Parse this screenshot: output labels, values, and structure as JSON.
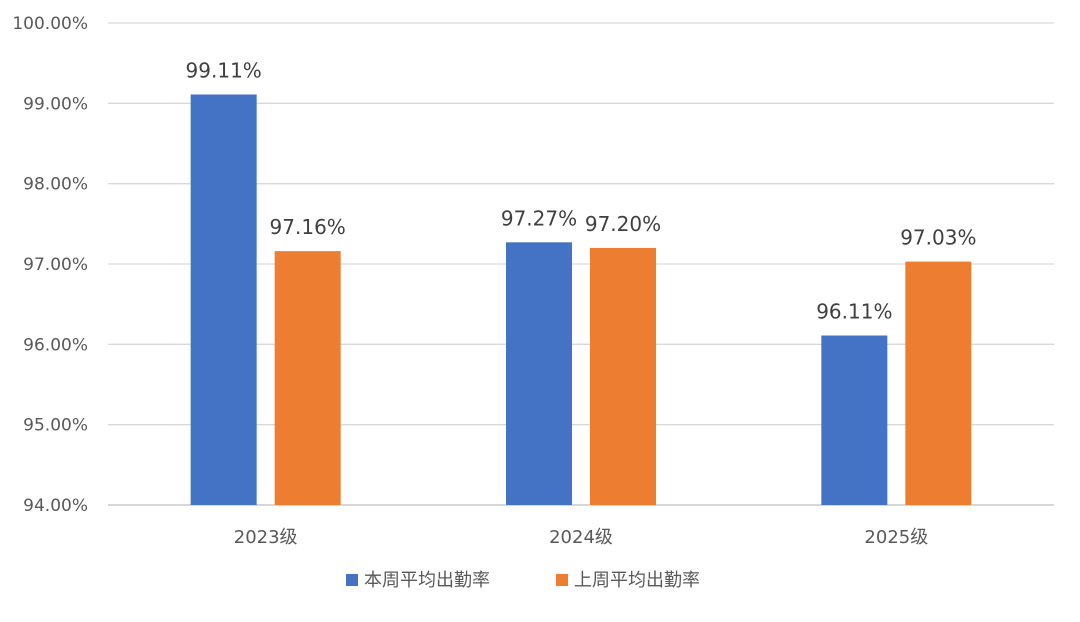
{
  "chart_data": {
    "type": "bar",
    "title": "",
    "xlabel": "",
    "ylabel": "",
    "categories": [
      "2023级",
      "2024级",
      "2025级"
    ],
    "series": [
      {
        "name": "本周平均出勤率",
        "values": [
          99.11,
          97.27,
          96.11
        ],
        "labels": [
          "99.11%",
          "97.27%",
          "96.11%"
        ],
        "color": "#4472C4"
      },
      {
        "name": "上周平均出勤率",
        "values": [
          97.16,
          97.2,
          97.03
        ],
        "labels": [
          "97.16%",
          "97.20%",
          "97.03%"
        ],
        "color": "#ED7D31"
      }
    ],
    "ylim": [
      94,
      100
    ],
    "yticks": [
      94,
      95,
      96,
      97,
      98,
      99,
      100
    ],
    "ytick_labels": [
      "94.00%",
      "95.00%",
      "96.00%",
      "97.00%",
      "98.00%",
      "99.00%",
      "100.00%"
    ],
    "grid": true,
    "legend_position": "bottom"
  }
}
